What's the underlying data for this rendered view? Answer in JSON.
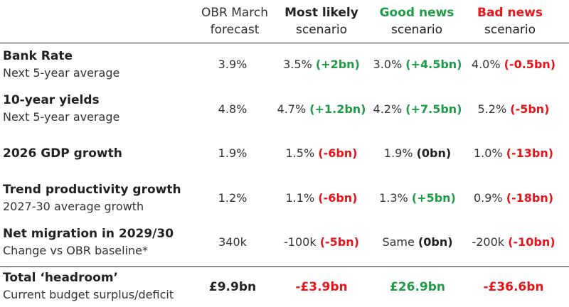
{
  "colors": {
    "positive": "#1e9c45",
    "negative": "#e8141a",
    "text": "#222222"
  },
  "header": {
    "obr": {
      "line1": "OBR March",
      "line2": "forecast"
    },
    "most_likely": {
      "line1": "Most likely",
      "line2": "scenario"
    },
    "good_news": {
      "line1": "Good news",
      "line2": "scenario"
    },
    "bad_news": {
      "line1": "Bad news",
      "line2": "scenario"
    }
  },
  "rows": [
    {
      "title": "Bank Rate",
      "sub": "Next 5-year average",
      "obr": "3.9%",
      "ml": {
        "v": "3.5%",
        "i": "(+2bn)"
      },
      "gn": {
        "v": "3.0%",
        "i": "(+4.5bn)"
      },
      "bn": {
        "v": "4.0%",
        "i": "(-0.5bn)"
      }
    },
    {
      "title": "10-year yields",
      "sub": "Next 5-year average",
      "obr": "4.8%",
      "ml": {
        "v": "4.7%",
        "i": "(+1.2bn)"
      },
      "gn": {
        "v": "4.2%",
        "i": "(+7.5bn)"
      },
      "bn": {
        "v": "5.2%",
        "i": "(-5bn)"
      }
    },
    {
      "title": "2026 GDP growth",
      "sub": "",
      "obr": "1.9%",
      "ml": {
        "v": "1.5%",
        "i": "(-6bn)"
      },
      "gn": {
        "v": "1.9%",
        "i": "(0bn)"
      },
      "bn": {
        "v": "1.0%",
        "i": "(-13bn)"
      }
    },
    {
      "title": "Trend productivity growth",
      "sub": "2027-30 average growth",
      "obr": "1.2%",
      "ml": {
        "v": "1.1%",
        "i": "(-6bn)"
      },
      "gn": {
        "v": "1.3%",
        "i": "(+5bn)"
      },
      "bn": {
        "v": "0.9%",
        "i": "(-18bn)"
      }
    },
    {
      "title": "Net migration in 2029/30",
      "sub": "Change vs OBR baseline*",
      "obr": "340k",
      "ml": {
        "v": "-100k",
        "i": "(-5bn)"
      },
      "gn": {
        "v": "Same",
        "i": "(0bn)"
      },
      "bn": {
        "v": "-200k",
        "i": "(-10bn)"
      }
    }
  ],
  "total": {
    "title": "Total ‘headroom’",
    "sub": "Current budget surplus/deficit",
    "obr": "£9.9bn",
    "ml": "-£3.9bn",
    "gn": "£26.9bn",
    "bn": "-£36.6bn"
  }
}
